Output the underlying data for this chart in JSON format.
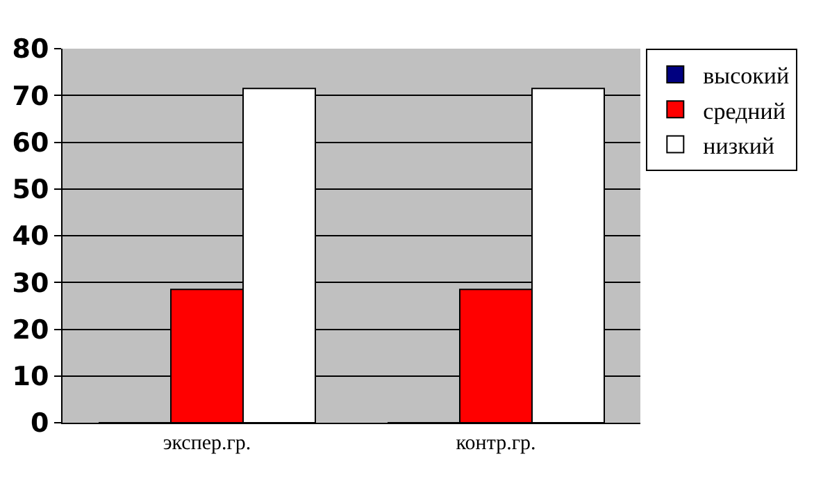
{
  "chart_data": {
    "type": "bar",
    "categories": [
      "экспер.гр.",
      "контр.гр."
    ],
    "series": [
      {
        "name": "высокий",
        "color": "#000080",
        "values": [
          0,
          0
        ]
      },
      {
        "name": "средний",
        "color": "#ff0000",
        "values": [
          28.5,
          28.5
        ]
      },
      {
        "name": "низкий",
        "color": "#ffffff",
        "values": [
          71.5,
          71.5
        ]
      }
    ],
    "ylim": [
      0,
      80
    ],
    "yticks": [
      0,
      10,
      20,
      30,
      40,
      50,
      60,
      70,
      80
    ],
    "grid": "y",
    "legend": "top right"
  }
}
